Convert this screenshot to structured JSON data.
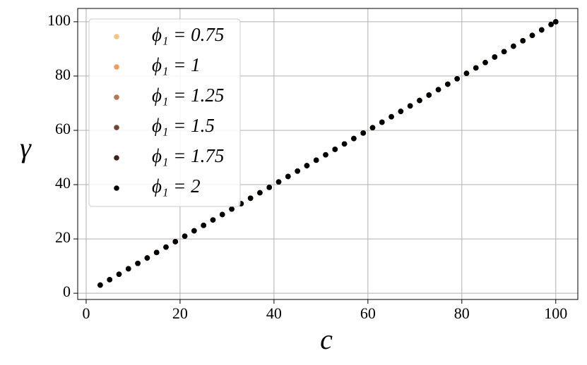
{
  "chart_data": {
    "type": "scatter",
    "xlabel": "c",
    "ylabel": "γ",
    "x": [
      3,
      5,
      7,
      9,
      11,
      13,
      15,
      17,
      19,
      21,
      23,
      25,
      27,
      29,
      31,
      33,
      35,
      37,
      39,
      41,
      43,
      45,
      47,
      49,
      51,
      53,
      55,
      57,
      59,
      61,
      63,
      65,
      67,
      69,
      71,
      73,
      75,
      77,
      79,
      81,
      83,
      85,
      87,
      89,
      91,
      93,
      95,
      97,
      99,
      100
    ],
    "series": [
      {
        "name": "ϕ₁ = 0.75",
        "color": "#f6c27c",
        "values": [
          3,
          5,
          7,
          9,
          11,
          13,
          15,
          17,
          19,
          21,
          23,
          25,
          27,
          29,
          31,
          33,
          35,
          37,
          39,
          41,
          43,
          45,
          47,
          49,
          51,
          53,
          55,
          57,
          59,
          61,
          63,
          65,
          67,
          69,
          71,
          73,
          75,
          77,
          79,
          81,
          83,
          85,
          87,
          89,
          91,
          93,
          95,
          97,
          99,
          100
        ]
      },
      {
        "name": "ϕ₁ = 1",
        "color": "#ee9a62",
        "values": [
          3,
          5,
          7,
          9,
          11,
          13,
          15,
          17,
          19,
          21,
          23,
          25,
          27,
          29,
          31,
          33,
          35,
          37,
          39,
          41,
          43,
          45,
          47,
          49,
          51,
          53,
          55,
          57,
          59,
          61,
          63,
          65,
          67,
          69,
          71,
          73,
          75,
          77,
          79,
          81,
          83,
          85,
          87,
          89,
          91,
          93,
          95,
          97,
          99,
          100
        ]
      },
      {
        "name": "ϕ₁ = 1.25",
        "color": "#b8764f",
        "values": [
          3,
          5,
          7,
          9,
          11,
          13,
          15,
          17,
          19,
          21,
          23,
          25,
          27,
          29,
          31,
          33,
          35,
          37,
          39,
          41,
          43,
          45,
          47,
          49,
          51,
          53,
          55,
          57,
          59,
          61,
          63,
          65,
          67,
          69,
          71,
          73,
          75,
          77,
          79,
          81,
          83,
          85,
          87,
          89,
          91,
          93,
          95,
          97,
          99,
          100
        ]
      },
      {
        "name": "ϕ₁ = 1.5",
        "color": "#764230",
        "values": [
          3,
          5,
          7,
          9,
          11,
          13,
          15,
          17,
          19,
          21,
          23,
          25,
          27,
          29,
          31,
          33,
          35,
          37,
          39,
          41,
          43,
          45,
          47,
          49,
          51,
          53,
          55,
          57,
          59,
          61,
          63,
          65,
          67,
          69,
          71,
          73,
          75,
          77,
          79,
          81,
          83,
          85,
          87,
          89,
          91,
          93,
          95,
          97,
          99,
          100
        ]
      },
      {
        "name": "ϕ₁ = 1.75",
        "color": "#3d2219",
        "values": [
          3,
          5,
          7,
          9,
          11,
          13,
          15,
          17,
          19,
          21,
          23,
          25,
          27,
          29,
          31,
          33,
          35,
          37,
          39,
          41,
          43,
          45,
          47,
          49,
          51,
          53,
          55,
          57,
          59,
          61,
          63,
          65,
          67,
          69,
          71,
          73,
          75,
          77,
          79,
          81,
          83,
          85,
          87,
          89,
          91,
          93,
          95,
          97,
          99,
          100
        ]
      },
      {
        "name": "ϕ₁ = 2",
        "color": "#000000",
        "values": [
          3,
          5,
          7,
          9,
          11,
          13,
          15,
          17,
          19,
          21,
          23,
          25,
          27,
          29,
          31,
          33,
          35,
          37,
          39,
          41,
          43,
          45,
          47,
          49,
          51,
          53,
          55,
          57,
          59,
          61,
          63,
          65,
          67,
          69,
          71,
          73,
          75,
          77,
          79,
          81,
          83,
          85,
          87,
          89,
          91,
          93,
          95,
          97,
          99,
          100
        ]
      }
    ],
    "xlim": [
      -1.8,
      104.7
    ],
    "ylim": [
      -2.3,
      104.9
    ],
    "xticks": [
      0,
      20,
      40,
      60,
      80,
      100
    ],
    "yticks": [
      0,
      20,
      40,
      60,
      80,
      100
    ],
    "grid": true,
    "legend": "upper left"
  }
}
